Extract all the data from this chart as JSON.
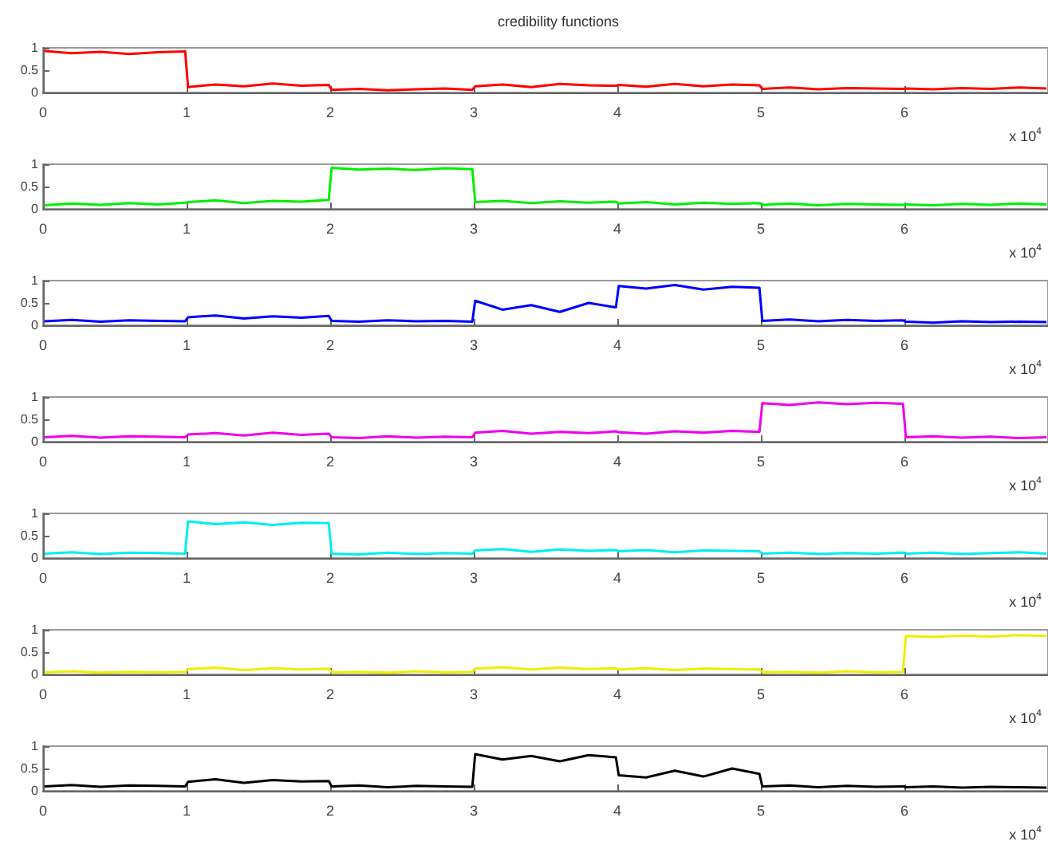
{
  "chart_data": [
    {
      "type": "line",
      "title": "credibility functions",
      "xlabel": "x 10$^{4}$",
      "xlim": [
        0,
        7
      ],
      "xticks": [
        0,
        1,
        2,
        3,
        4,
        5,
        6
      ],
      "ylim": [
        0,
        1
      ],
      "yticks": [
        0,
        0.5,
        1
      ],
      "x": [
        0.01,
        0.2,
        0.4,
        0.6,
        0.8,
        0.99,
        1.01,
        1.2,
        1.4,
        1.6,
        1.8,
        1.99,
        2.01,
        2.2,
        2.4,
        2.6,
        2.8,
        2.99,
        3.01,
        3.2,
        3.4,
        3.6,
        3.8,
        3.99,
        4.01,
        4.2,
        4.4,
        4.6,
        4.8,
        4.99,
        5.01,
        5.2,
        5.4,
        5.6,
        5.8,
        5.99,
        6.01,
        6.2,
        6.4,
        6.6,
        6.8,
        6.99
      ],
      "color": "#ff0000",
      "values": [
        0.93,
        0.88,
        0.91,
        0.86,
        0.9,
        0.92,
        0.12,
        0.18,
        0.14,
        0.2,
        0.15,
        0.17,
        0.06,
        0.08,
        0.05,
        0.07,
        0.09,
        0.06,
        0.14,
        0.18,
        0.12,
        0.19,
        0.16,
        0.15,
        0.17,
        0.13,
        0.19,
        0.14,
        0.18,
        0.16,
        0.08,
        0.11,
        0.07,
        0.1,
        0.09,
        0.08,
        0.09,
        0.07,
        0.1,
        0.08,
        0.11,
        0.09
      ]
    },
    {
      "type": "line",
      "xlabel": "x 10$^{4}$",
      "xlim": [
        0,
        7
      ],
      "xticks": [
        0,
        1,
        2,
        3,
        4,
        5,
        6
      ],
      "ylim": [
        0,
        1
      ],
      "yticks": [
        0,
        0.5,
        1
      ],
      "x": [
        0.01,
        0.2,
        0.4,
        0.6,
        0.8,
        0.99,
        1.01,
        1.2,
        1.4,
        1.6,
        1.8,
        1.99,
        2.01,
        2.2,
        2.4,
        2.6,
        2.8,
        2.99,
        3.01,
        3.2,
        3.4,
        3.6,
        3.8,
        3.99,
        4.01,
        4.2,
        4.4,
        4.6,
        4.8,
        4.99,
        5.01,
        5.2,
        5.4,
        5.6,
        5.8,
        5.99,
        6.01,
        6.2,
        6.4,
        6.6,
        6.8,
        6.99
      ],
      "color": "#00ee00",
      "values": [
        0.08,
        0.12,
        0.09,
        0.13,
        0.1,
        0.14,
        0.15,
        0.19,
        0.13,
        0.18,
        0.16,
        0.2,
        0.92,
        0.88,
        0.9,
        0.87,
        0.91,
        0.89,
        0.15,
        0.18,
        0.13,
        0.17,
        0.14,
        0.16,
        0.12,
        0.15,
        0.1,
        0.14,
        0.11,
        0.13,
        0.09,
        0.12,
        0.08,
        0.11,
        0.1,
        0.09,
        0.1,
        0.08,
        0.11,
        0.09,
        0.12,
        0.1
      ]
    },
    {
      "type": "line",
      "xlabel": "x 10$^{4}$",
      "xlim": [
        0,
        7
      ],
      "xticks": [
        0,
        1,
        2,
        3,
        4,
        5,
        6
      ],
      "ylim": [
        0,
        1
      ],
      "yticks": [
        0,
        0.5,
        1
      ],
      "x": [
        0.01,
        0.2,
        0.4,
        0.6,
        0.8,
        0.99,
        1.01,
        1.2,
        1.4,
        1.6,
        1.8,
        1.99,
        2.01,
        2.2,
        2.4,
        2.6,
        2.8,
        2.99,
        3.01,
        3.2,
        3.4,
        3.6,
        3.8,
        3.99,
        4.01,
        4.2,
        4.4,
        4.6,
        4.8,
        4.99,
        5.01,
        5.2,
        5.4,
        5.6,
        5.8,
        5.99,
        6.01,
        6.2,
        6.4,
        6.6,
        6.8,
        6.99
      ],
      "color": "#0000ff",
      "values": [
        0.09,
        0.12,
        0.08,
        0.11,
        0.1,
        0.09,
        0.18,
        0.22,
        0.15,
        0.2,
        0.17,
        0.21,
        0.1,
        0.08,
        0.11,
        0.09,
        0.1,
        0.08,
        0.55,
        0.35,
        0.45,
        0.3,
        0.5,
        0.4,
        0.88,
        0.82,
        0.9,
        0.8,
        0.86,
        0.84,
        0.1,
        0.13,
        0.09,
        0.12,
        0.1,
        0.11,
        0.08,
        0.06,
        0.09,
        0.07,
        0.08,
        0.07
      ]
    },
    {
      "type": "line",
      "xlabel": "x 10$^{4}$",
      "xlim": [
        0,
        7
      ],
      "xticks": [
        0,
        1,
        2,
        3,
        4,
        5,
        6
      ],
      "ylim": [
        0,
        1
      ],
      "yticks": [
        0,
        0.5,
        1
      ],
      "x": [
        0.01,
        0.2,
        0.4,
        0.6,
        0.8,
        0.99,
        1.01,
        1.2,
        1.4,
        1.6,
        1.8,
        1.99,
        2.01,
        2.2,
        2.4,
        2.6,
        2.8,
        2.99,
        3.01,
        3.2,
        3.4,
        3.6,
        3.8,
        3.99,
        4.01,
        4.2,
        4.4,
        4.6,
        4.8,
        4.99,
        5.01,
        5.2,
        5.4,
        5.6,
        5.8,
        5.99,
        6.01,
        6.2,
        6.4,
        6.6,
        6.8,
        6.99
      ],
      "color": "#ee00ee",
      "values": [
        0.1,
        0.13,
        0.09,
        0.12,
        0.11,
        0.1,
        0.16,
        0.19,
        0.14,
        0.2,
        0.15,
        0.18,
        0.1,
        0.08,
        0.12,
        0.09,
        0.11,
        0.1,
        0.2,
        0.24,
        0.18,
        0.22,
        0.19,
        0.23,
        0.21,
        0.18,
        0.23,
        0.2,
        0.24,
        0.22,
        0.86,
        0.82,
        0.88,
        0.84,
        0.87,
        0.85,
        0.1,
        0.12,
        0.09,
        0.11,
        0.08,
        0.1
      ]
    },
    {
      "type": "line",
      "xlabel": "x 10$^{4}$",
      "xlim": [
        0,
        7
      ],
      "xticks": [
        0,
        1,
        2,
        3,
        4,
        5,
        6
      ],
      "ylim": [
        0,
        1
      ],
      "yticks": [
        0,
        0.5,
        1
      ],
      "x": [
        0.01,
        0.2,
        0.4,
        0.6,
        0.8,
        0.99,
        1.01,
        1.2,
        1.4,
        1.6,
        1.8,
        1.99,
        2.01,
        2.2,
        2.4,
        2.6,
        2.8,
        2.99,
        3.01,
        3.2,
        3.4,
        3.6,
        3.8,
        3.99,
        4.01,
        4.2,
        4.4,
        4.6,
        4.8,
        4.99,
        5.01,
        5.2,
        5.4,
        5.6,
        5.8,
        5.99,
        6.01,
        6.2,
        6.4,
        6.6,
        6.8,
        6.99
      ],
      "color": "#00eeee",
      "values": [
        0.1,
        0.13,
        0.09,
        0.12,
        0.11,
        0.1,
        0.82,
        0.76,
        0.8,
        0.74,
        0.79,
        0.78,
        0.1,
        0.08,
        0.12,
        0.09,
        0.11,
        0.1,
        0.17,
        0.2,
        0.14,
        0.19,
        0.16,
        0.18,
        0.15,
        0.18,
        0.13,
        0.17,
        0.16,
        0.15,
        0.1,
        0.12,
        0.09,
        0.11,
        0.1,
        0.12,
        0.1,
        0.12,
        0.09,
        0.11,
        0.13,
        0.1
      ]
    },
    {
      "type": "line",
      "xlabel": "x 10$^{4}$",
      "xlim": [
        0,
        7
      ],
      "xticks": [
        0,
        1,
        2,
        3,
        4,
        5,
        6
      ],
      "ylim": [
        0,
        1
      ],
      "yticks": [
        0,
        0.5,
        1
      ],
      "x": [
        0.01,
        0.2,
        0.4,
        0.6,
        0.8,
        0.99,
        1.01,
        1.2,
        1.4,
        1.6,
        1.8,
        1.99,
        2.01,
        2.2,
        2.4,
        2.6,
        2.8,
        2.99,
        3.01,
        3.2,
        3.4,
        3.6,
        3.8,
        3.99,
        4.01,
        4.2,
        4.4,
        4.6,
        4.8,
        4.99,
        5.01,
        5.2,
        5.4,
        5.6,
        5.8,
        5.99,
        6.01,
        6.2,
        6.4,
        6.6,
        6.8,
        6.99
      ],
      "color": "#eeee00",
      "values": [
        0.05,
        0.07,
        0.04,
        0.06,
        0.05,
        0.06,
        0.12,
        0.15,
        0.1,
        0.14,
        0.11,
        0.13,
        0.05,
        0.06,
        0.04,
        0.07,
        0.05,
        0.06,
        0.13,
        0.16,
        0.11,
        0.15,
        0.12,
        0.14,
        0.11,
        0.14,
        0.1,
        0.13,
        0.12,
        0.11,
        0.05,
        0.06,
        0.04,
        0.07,
        0.05,
        0.06,
        0.86,
        0.84,
        0.87,
        0.85,
        0.88,
        0.86
      ]
    },
    {
      "type": "line",
      "xlabel": "x 10$^{4}$",
      "xlim": [
        0,
        7
      ],
      "xticks": [
        0,
        1,
        2,
        3,
        4,
        5,
        6
      ],
      "ylim": [
        0,
        1
      ],
      "yticks": [
        0,
        0.5,
        1
      ],
      "x": [
        0.01,
        0.2,
        0.4,
        0.6,
        0.8,
        0.99,
        1.01,
        1.2,
        1.4,
        1.6,
        1.8,
        1.99,
        2.01,
        2.2,
        2.4,
        2.6,
        2.8,
        2.99,
        3.01,
        3.2,
        3.4,
        3.6,
        3.8,
        3.99,
        4.01,
        4.2,
        4.4,
        4.6,
        4.8,
        4.99,
        5.01,
        5.2,
        5.4,
        5.6,
        5.8,
        5.99,
        6.01,
        6.2,
        6.4,
        6.6,
        6.8,
        6.99
      ],
      "color": "#000000",
      "values": [
        0.1,
        0.13,
        0.09,
        0.12,
        0.11,
        0.1,
        0.2,
        0.26,
        0.18,
        0.24,
        0.21,
        0.22,
        0.1,
        0.12,
        0.08,
        0.11,
        0.1,
        0.09,
        0.82,
        0.7,
        0.78,
        0.66,
        0.8,
        0.75,
        0.35,
        0.3,
        0.45,
        0.32,
        0.5,
        0.38,
        0.1,
        0.12,
        0.08,
        0.11,
        0.09,
        0.1,
        0.08,
        0.1,
        0.07,
        0.09,
        0.08,
        0.07
      ]
    }
  ]
}
